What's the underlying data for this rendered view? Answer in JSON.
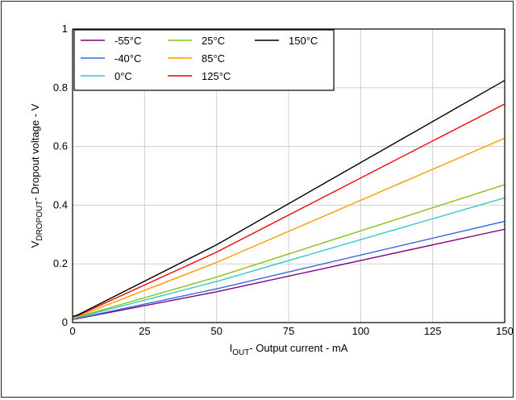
{
  "chart_data": {
    "type": "line",
    "xlabel": {
      "main": "I",
      "sub": "OUT",
      "rest": "- Output current - mA"
    },
    "ylabel": {
      "main": "V",
      "sub": "DROPOUT",
      "rest": "- Dropout voltage - V"
    },
    "xlim": [
      0,
      150
    ],
    "ylim": [
      0,
      1
    ],
    "xticks": [
      0,
      25,
      50,
      75,
      100,
      125,
      150
    ],
    "yticks": [
      0,
      0.2,
      0.4,
      0.6,
      0.8,
      1
    ],
    "xtick_labels": [
      "0",
      "25",
      "50",
      "75",
      "100",
      "125",
      "150"
    ],
    "ytick_labels": [
      "0",
      "0.2",
      "0.4",
      "0.6",
      "0.8",
      "1"
    ],
    "grid": true,
    "legend_position": "top-left",
    "x": [
      0,
      2,
      50,
      150
    ],
    "series": [
      {
        "name": "-55°C",
        "color": "#800080",
        "values": [
          0.01,
          0.014,
          0.105,
          0.318
        ]
      },
      {
        "name": "-40°C",
        "color": "#3366dd",
        "values": [
          0.01,
          0.015,
          0.115,
          0.345
        ]
      },
      {
        "name": "0°C",
        "color": "#33c7cc",
        "values": [
          0.012,
          0.018,
          0.14,
          0.425
        ]
      },
      {
        "name": "25°C",
        "color": "#88c218",
        "values": [
          0.015,
          0.02,
          0.155,
          0.47
        ]
      },
      {
        "name": "85°C",
        "color": "#ff9900",
        "values": [
          0.015,
          0.022,
          0.205,
          0.628
        ]
      },
      {
        "name": "125°C",
        "color": "#ee0000",
        "values": [
          0.02,
          0.025,
          0.24,
          0.745
        ]
      },
      {
        "name": "150°C",
        "color": "#000000",
        "values": [
          0.02,
          0.027,
          0.265,
          0.825
        ]
      }
    ]
  }
}
